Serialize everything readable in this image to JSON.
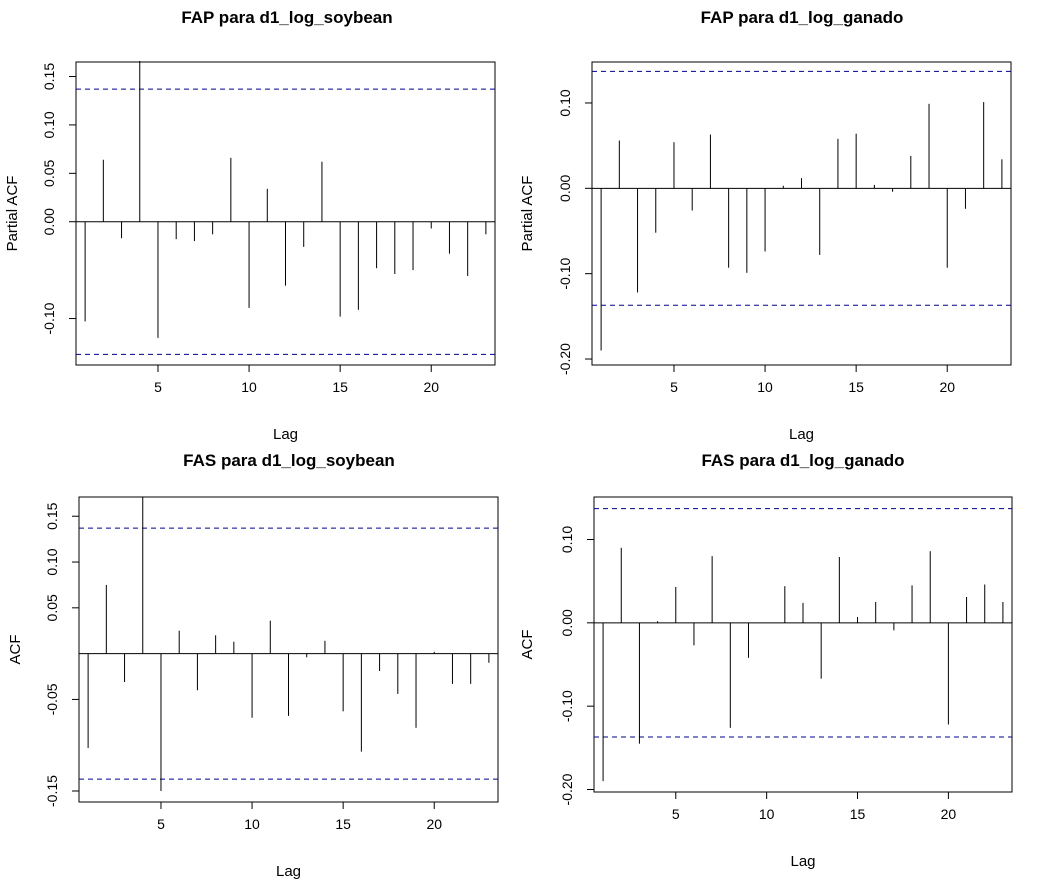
{
  "chart_data": [
    {
      "type": "bar",
      "title": "FAP para d1_log_soybean",
      "xlabel": "Lag",
      "ylabel": "Partial ACF",
      "xlim": [
        0.5,
        23.5
      ],
      "ylim": [
        -0.148,
        0.165
      ],
      "x_ticks": [
        5,
        10,
        15,
        20
      ],
      "y_ticks": [
        -0.1,
        0.0,
        0.05,
        0.1,
        0.15
      ],
      "y_tick_labels": [
        "-0.10",
        "0.00",
        "0.05",
        "0.10",
        "0.15"
      ],
      "ci": 0.137,
      "lags": [
        1,
        2,
        3,
        4,
        5,
        6,
        7,
        8,
        9,
        10,
        11,
        12,
        13,
        14,
        15,
        16,
        17,
        18,
        19,
        20,
        21,
        22,
        23
      ],
      "values": [
        -0.103,
        0.064,
        -0.017,
        0.166,
        -0.12,
        -0.018,
        -0.02,
        -0.013,
        0.066,
        -0.089,
        0.034,
        -0.066,
        -0.026,
        0.062,
        -0.098,
        -0.091,
        -0.048,
        -0.054,
        -0.05,
        -0.007,
        -0.033,
        -0.056,
        -0.013
      ],
      "colors": {
        "line": "#000000",
        "ci": "#00008b"
      }
    },
    {
      "type": "bar",
      "title": "FAP para d1_log_ganado",
      "xlabel": "Lag",
      "ylabel": "Partial ACF",
      "xlim": [
        0.5,
        23.5
      ],
      "ylim": [
        -0.207,
        0.148
      ],
      "x_ticks": [
        5,
        10,
        15,
        20
      ],
      "y_ticks": [
        -0.2,
        -0.1,
        0.0,
        0.1
      ],
      "y_tick_labels": [
        "-0.20",
        "-0.10",
        "0.00",
        "0.10"
      ],
      "ci": 0.137,
      "lags": [
        1,
        2,
        3,
        4,
        5,
        6,
        7,
        8,
        9,
        10,
        11,
        12,
        13,
        14,
        15,
        16,
        17,
        18,
        19,
        20,
        21,
        22,
        23
      ],
      "values": [
        -0.19,
        0.056,
        -0.122,
        -0.052,
        0.054,
        -0.026,
        0.063,
        -0.093,
        -0.099,
        -0.074,
        0.003,
        0.012,
        -0.078,
        0.058,
        0.064,
        0.004,
        -0.004,
        0.038,
        0.099,
        -0.093,
        -0.024,
        0.101,
        0.034
      ],
      "colors": {
        "line": "#000000",
        "ci": "#00008b"
      }
    },
    {
      "type": "bar",
      "title": "FAS para d1_log_soybean",
      "xlabel": "Lag",
      "ylabel": "ACF",
      "xlim": [
        0.5,
        23.5
      ],
      "ylim": [
        -0.162,
        0.171
      ],
      "x_ticks": [
        5,
        10,
        15,
        20
      ],
      "y_ticks": [
        -0.15,
        -0.05,
        0.05,
        0.1,
        0.15
      ],
      "y_tick_labels": [
        "-0.15",
        "-0.05",
        "0.05",
        "0.10",
        "0.15"
      ],
      "ci": 0.137,
      "lags": [
        1,
        2,
        3,
        4,
        5,
        6,
        7,
        8,
        9,
        10,
        11,
        12,
        13,
        14,
        15,
        16,
        17,
        18,
        19,
        20,
        21,
        22,
        23
      ],
      "values": [
        -0.103,
        0.075,
        -0.031,
        0.171,
        -0.15,
        0.025,
        -0.04,
        0.02,
        0.013,
        -0.07,
        0.036,
        -0.068,
        -0.004,
        0.014,
        -0.063,
        -0.107,
        -0.019,
        -0.044,
        -0.081,
        0.002,
        -0.033,
        -0.033,
        -0.01
      ],
      "colors": {
        "line": "#000000",
        "ci": "#00008b"
      }
    },
    {
      "type": "bar",
      "title": "FAS para d1_log_ganado",
      "xlabel": "Lag",
      "ylabel": "ACF",
      "xlim": [
        0.5,
        23.5
      ],
      "ylim": [
        -0.203,
        0.151
      ],
      "x_ticks": [
        5,
        10,
        15,
        20
      ],
      "y_ticks": [
        -0.2,
        -0.1,
        0.0,
        0.1
      ],
      "y_tick_labels": [
        "-0.20",
        "-0.10",
        "0.00",
        "0.10"
      ],
      "ci": 0.137,
      "lags": [
        1,
        2,
        3,
        4,
        5,
        6,
        7,
        8,
        9,
        10,
        11,
        12,
        13,
        14,
        15,
        16,
        17,
        18,
        19,
        20,
        21,
        22,
        23
      ],
      "values": [
        -0.19,
        0.09,
        -0.145,
        0.002,
        0.043,
        -0.027,
        0.08,
        -0.126,
        -0.042,
        0.0,
        0.044,
        0.024,
        -0.067,
        0.079,
        0.007,
        0.025,
        -0.009,
        0.045,
        0.086,
        -0.122,
        0.031,
        0.046,
        0.025
      ],
      "colors": {
        "line": "#000000",
        "ci": "#00008b"
      }
    }
  ]
}
